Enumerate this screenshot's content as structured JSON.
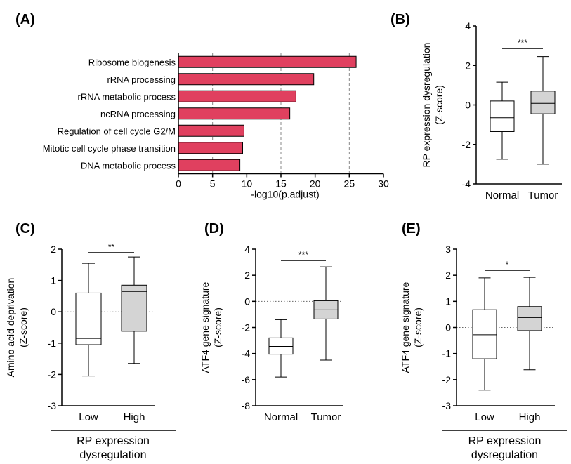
{
  "figure": {
    "bar_color": "#e0405f",
    "normal_box_color": "#ffffff",
    "tumor_box_color": "#d4d4d4"
  },
  "chart_data": [
    {
      "panel": "(A)",
      "type": "bar",
      "orientation": "horizontal",
      "categories": [
        "Ribosome biogenesis",
        "rRNA processing",
        "rRNA metabolic process",
        "ncRNA processing",
        "Regulation of cell cycle G2/M",
        "Mitotic cell cycle phase transition",
        "DNA metabolic process"
      ],
      "values": [
        26.0,
        19.8,
        17.2,
        16.3,
        9.6,
        9.4,
        9.0
      ],
      "xlabel": "-log10(p.adjust)",
      "xlim": [
        0,
        30
      ],
      "xticks": [
        0,
        5,
        10,
        15,
        20,
        25,
        30
      ],
      "gridlines_x": [
        5,
        15,
        25
      ]
    },
    {
      "panel": "(B)",
      "type": "box",
      "categories": [
        "Normal",
        "Tumor"
      ],
      "boxes": [
        {
          "min": -2.75,
          "q1": -1.35,
          "median": -0.65,
          "q3": 0.2,
          "max": 1.15
        },
        {
          "min": -3.0,
          "q1": -0.45,
          "median": 0.08,
          "q3": 0.7,
          "max": 2.45
        }
      ],
      "ylabel": [
        "RP expression dysregulation",
        "(Z-score)"
      ],
      "ylim": [
        -4,
        4
      ],
      "yticks": [
        4,
        2,
        0,
        -2,
        -4
      ],
      "significance": "***",
      "reference_line": 0
    },
    {
      "panel": "(C)",
      "type": "box",
      "categories": [
        "Low",
        "High"
      ],
      "boxes": [
        {
          "min": -2.05,
          "q1": -1.05,
          "median": -0.85,
          "q3": 0.6,
          "max": 1.55
        },
        {
          "min": -1.65,
          "q1": -0.62,
          "median": 0.65,
          "q3": 0.85,
          "max": 1.75
        }
      ],
      "ylabel": [
        "Amino acid deprivation",
        "(Z-score)"
      ],
      "ylim": [
        -3,
        2
      ],
      "yticks": [
        2,
        1,
        0,
        -1,
        -2,
        -3
      ],
      "significance": "**",
      "reference_line": 0,
      "group_caption": [
        "RP expression",
        "dysregulation"
      ]
    },
    {
      "panel": "(D)",
      "type": "box",
      "categories": [
        "Normal",
        "Tumor"
      ],
      "boxes": [
        {
          "min": -5.8,
          "q1": -4.05,
          "median": -3.45,
          "q3": -2.8,
          "max": -1.4
        },
        {
          "min": -4.5,
          "q1": -1.35,
          "median": -0.65,
          "q3": 0.05,
          "max": 2.65
        }
      ],
      "ylabel": [
        "ATF4 gene signature",
        "(Z-score)"
      ],
      "ylim": [
        -8,
        4
      ],
      "yticks": [
        4,
        2,
        0,
        -2,
        -4,
        -6,
        -8
      ],
      "significance": "***",
      "reference_line": 0
    },
    {
      "panel": "(E)",
      "type": "box",
      "categories": [
        "Low",
        "High"
      ],
      "boxes": [
        {
          "min": -2.4,
          "q1": -1.2,
          "median": -0.28,
          "q3": 0.68,
          "max": 1.9
        },
        {
          "min": -1.62,
          "q1": -0.12,
          "median": 0.38,
          "q3": 0.8,
          "max": 1.92
        }
      ],
      "ylabel": [
        "ATF4 gene signature",
        "(Z-score)"
      ],
      "ylim": [
        -3,
        3
      ],
      "yticks": [
        3,
        2,
        1,
        0,
        -1,
        -2,
        -3
      ],
      "significance": "*",
      "reference_line": 0,
      "group_caption": [
        "RP expression",
        "dysregulation"
      ]
    }
  ]
}
